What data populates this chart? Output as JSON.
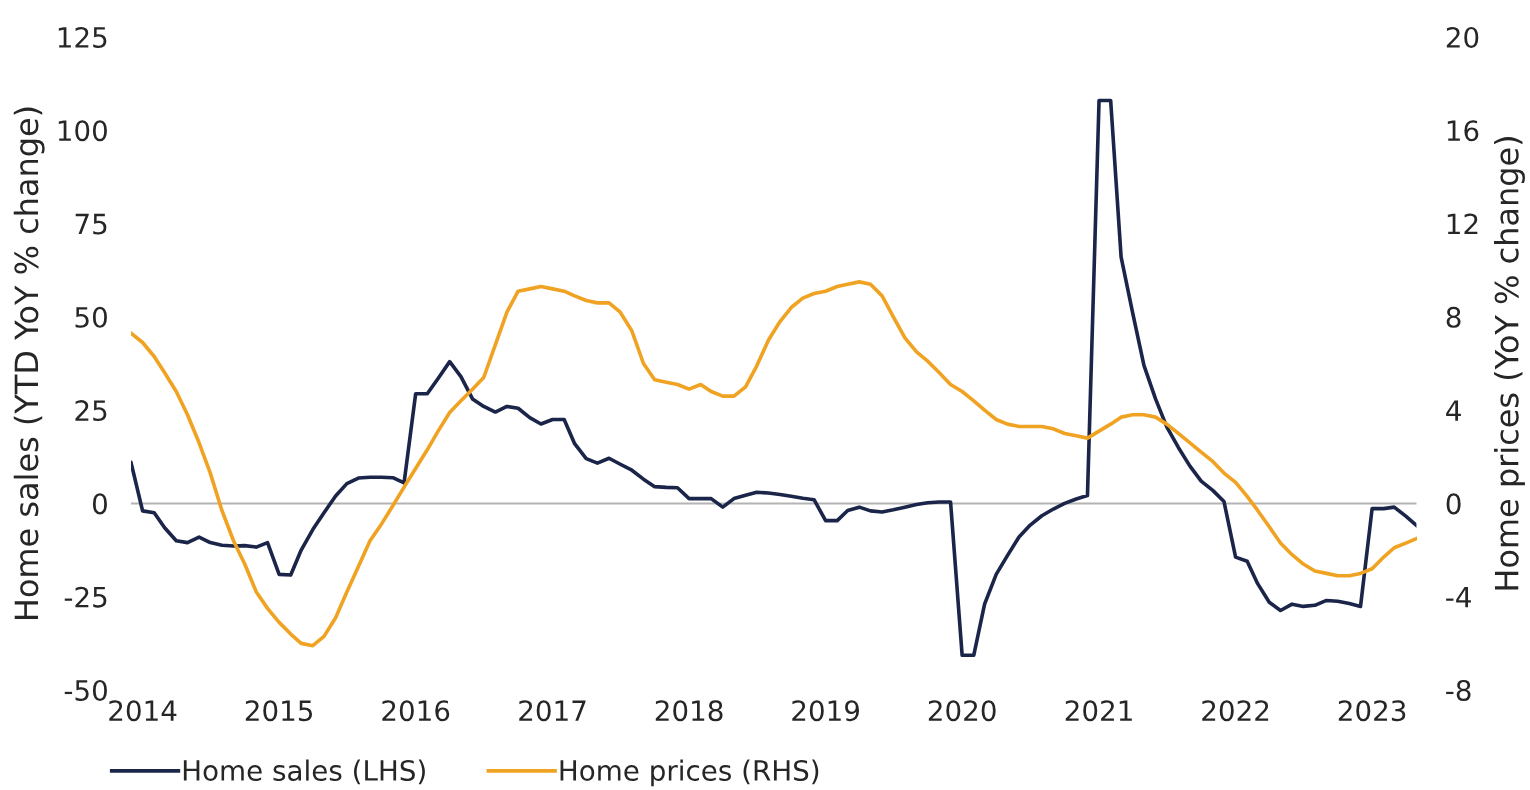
{
  "chart_data": {
    "type": "line",
    "ylabel": "Home sales (YTD YoY % change)",
    "y2label": "Home prices (YoY % change)",
    "x": [
      "2013-12",
      "2014-01",
      "2014-02",
      "2014-03",
      "2014-04",
      "2014-05",
      "2014-06",
      "2014-07",
      "2014-08",
      "2014-09",
      "2014-10",
      "2014-11",
      "2014-12",
      "2015-01",
      "2015-02",
      "2015-03",
      "2015-04",
      "2015-05",
      "2015-06",
      "2015-07",
      "2015-08",
      "2015-09",
      "2015-10",
      "2015-11",
      "2015-12",
      "2016-01",
      "2016-02",
      "2016-03",
      "2016-04",
      "2016-05",
      "2016-06",
      "2016-07",
      "2016-08",
      "2016-09",
      "2016-10",
      "2016-11",
      "2016-12",
      "2017-01",
      "2017-02",
      "2017-03",
      "2017-04",
      "2017-05",
      "2017-06",
      "2017-07",
      "2017-08",
      "2017-09",
      "2017-10",
      "2017-11",
      "2017-12",
      "2018-01",
      "2018-02",
      "2018-03",
      "2018-04",
      "2018-05",
      "2018-06",
      "2018-07",
      "2018-08",
      "2018-09",
      "2018-10",
      "2018-11",
      "2018-12",
      "2019-01",
      "2019-02",
      "2019-03",
      "2019-04",
      "2019-05",
      "2019-06",
      "2019-07",
      "2019-08",
      "2019-09",
      "2019-10",
      "2019-11",
      "2019-12",
      "2020-01",
      "2020-02",
      "2020-03",
      "2020-04",
      "2020-05",
      "2020-06",
      "2020-07",
      "2020-08",
      "2020-09",
      "2020-10",
      "2020-11",
      "2020-12",
      "2021-01",
      "2021-02",
      "2021-03",
      "2021-04",
      "2021-05",
      "2021-06",
      "2021-07",
      "2021-08",
      "2021-09",
      "2021-10",
      "2021-11",
      "2021-12",
      "2022-01",
      "2022-02",
      "2022-03",
      "2022-04",
      "2022-05",
      "2022-06",
      "2022-07",
      "2022-08",
      "2022-09",
      "2022-10",
      "2022-11",
      "2022-12",
      "2023-01",
      "2023-02",
      "2023-03",
      "2023-04",
      "2023-05"
    ],
    "xlim": [
      "2013-12",
      "2023-05"
    ],
    "xticks": [
      "2014",
      "2015",
      "2016",
      "2017",
      "2018",
      "2019",
      "2020",
      "2021",
      "2022",
      "2023"
    ],
    "ylim": [
      -50,
      125
    ],
    "yticks": [
      -50,
      -25,
      0,
      25,
      50,
      75,
      100,
      125
    ],
    "y2lim": [
      -8,
      20
    ],
    "y2ticks": [
      -8,
      -4,
      0,
      4,
      8,
      12,
      16,
      20
    ],
    "series": [
      {
        "name": "Home sales (LHS)",
        "color": "#1b2549",
        "values": [
          11,
          -2,
          -2.5,
          -6.5,
          -10,
          -10.5,
          -9,
          -10.5,
          -11.2,
          -11.4,
          -11.3,
          -11.7,
          -10.5,
          -19,
          -19.2,
          -12.5,
          -7,
          -2.5,
          2,
          5.3,
          6.8,
          7,
          7,
          6.9,
          5.5,
          29.4,
          29.4,
          33.5,
          38,
          34,
          28,
          26,
          24.5,
          26,
          25.5,
          23,
          21.3,
          22.5,
          22.5,
          16,
          12,
          10.8,
          12.1,
          10.5,
          8.9,
          6.5,
          4.5,
          4.3,
          4.2,
          1.3,
          1.3,
          1.3,
          -1,
          1.3,
          2.2,
          3,
          2.8,
          2.4,
          1.9,
          1.4,
          1,
          -4.6,
          -4.6,
          -1.9,
          -1,
          -2,
          -2.3,
          -1.7,
          -1,
          -0.3,
          0.2,
          0.4,
          0.4,
          -40.7,
          -40.7,
          -27,
          -19,
          -14,
          -9,
          -5.8,
          -3.3,
          -1.5,
          0,
          1.2,
          2.1,
          108,
          108,
          66,
          51,
          37,
          28,
          20.5,
          15,
          10,
          6,
          3.5,
          0.5,
          -14.4,
          -15.5,
          -21.5,
          -26.5,
          -28.7,
          -27,
          -27.6,
          -27.3,
          -26,
          -26.2,
          -26.8,
          -27.6,
          -1.4,
          -1.4,
          -1,
          -3.4,
          -6
        ]
      },
      {
        "name": "Home prices (RHS)",
        "color": "#f0a322",
        "axis": "y2",
        "values": [
          7.3,
          6.9,
          6.3,
          5.6,
          4.8,
          3.8,
          2.6,
          1.3,
          -0.3,
          -1.6,
          -2.6,
          -3.8,
          -4.5,
          -5.1,
          -5.6,
          -6.0,
          -6.1,
          -5.7,
          -4.9,
          -3.8,
          -2.7,
          -1.6,
          -0.9,
          -0.1,
          0.7,
          1.5,
          2.3,
          3.1,
          3.9,
          4.4,
          4.9,
          5.4,
          6.8,
          8.2,
          9.1,
          9.2,
          9.3,
          9.2,
          9.1,
          8.9,
          8.7,
          8.6,
          8.6,
          8.2,
          7.4,
          6.0,
          5.3,
          5.2,
          5.1,
          4.9,
          5.1,
          4.8,
          4.6,
          4.6,
          5.0,
          5.9,
          7.0,
          7.8,
          8.4,
          8.8,
          9.0,
          9.1,
          9.3,
          9.4,
          9.5,
          9.4,
          8.9,
          8.0,
          7.1,
          6.5,
          6.1,
          5.6,
          5.1,
          4.8,
          4.4,
          4.0,
          3.6,
          3.4,
          3.3,
          3.3,
          3.3,
          3.2,
          3.0,
          2.9,
          2.8,
          3.1,
          3.4,
          3.7,
          3.8,
          3.8,
          3.7,
          3.4,
          3.0,
          2.6,
          2.2,
          1.8,
          1.3,
          0.9,
          0.3,
          -0.3,
          -1.0,
          -1.7,
          -2.2,
          -2.6,
          -2.9,
          -3.0,
          -3.1,
          -3.1,
          -3.0,
          -2.8,
          -2.3,
          -1.9,
          -1.7,
          -1.5
        ]
      }
    ],
    "ref_lines": [
      {
        "axis": "y",
        "value": 0,
        "color": "#b4b4b4"
      }
    ],
    "legend": "bottom left"
  }
}
